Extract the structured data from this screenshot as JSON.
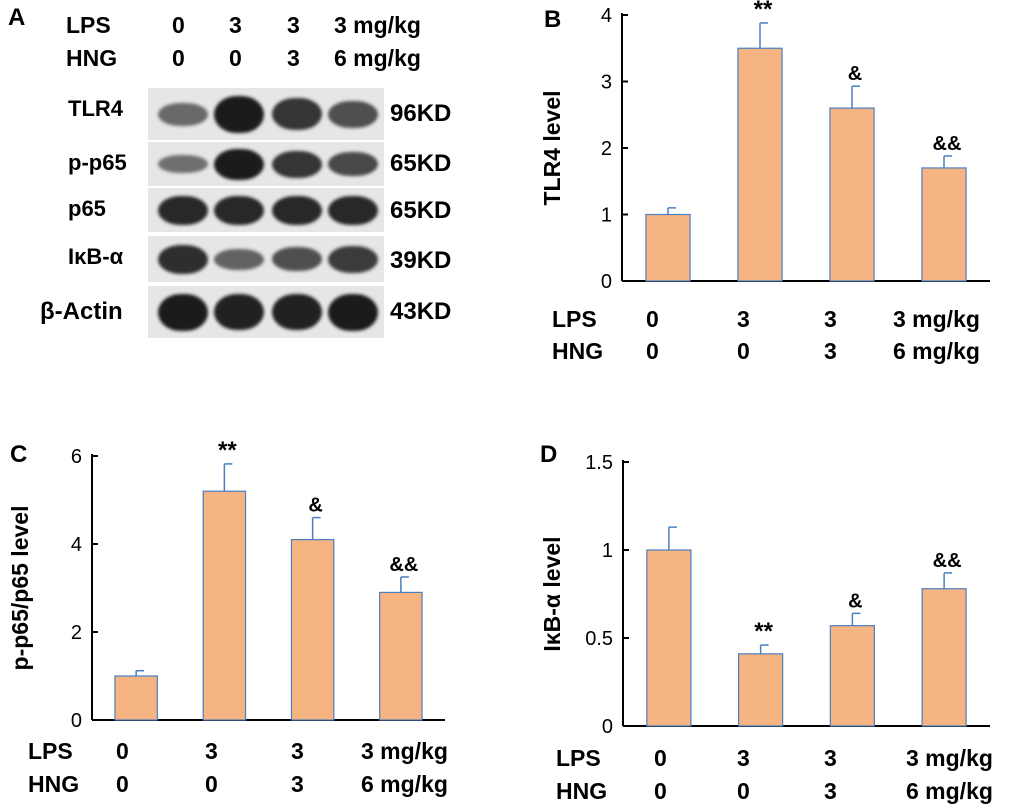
{
  "figure": {
    "conditions": {
      "row1_name": "LPS",
      "row2_name": "HNG",
      "row1_values": [
        "0",
        "3",
        "3",
        "3 mg/kg"
      ],
      "row2_values": [
        "0",
        "0",
        "3",
        "6 mg/kg"
      ]
    },
    "panelA": {
      "letter": "A",
      "rows": [
        {
          "label": "TLR4",
          "kd": "96KD",
          "intensities": [
            0.35,
            0.95,
            0.75,
            0.55
          ]
        },
        {
          "label": "p-p65",
          "kd": "65KD",
          "intensities": [
            0.3,
            0.95,
            0.75,
            0.6
          ]
        },
        {
          "label": "p65",
          "kd": "65KD",
          "intensities": [
            0.85,
            0.85,
            0.85,
            0.85
          ]
        },
        {
          "label": "IκB-α",
          "kd": "39KD",
          "intensities": [
            0.8,
            0.4,
            0.55,
            0.7
          ]
        },
        {
          "label": "β-Actin",
          "kd": "43KD",
          "intensities": [
            0.95,
            0.9,
            0.9,
            0.95
          ]
        }
      ]
    },
    "colors": {
      "bar_fill": "#f5b482",
      "bar_stroke": "#4a7fc1",
      "axis": "#000000"
    }
  },
  "chart_data": [
    {
      "panel": "B",
      "type": "bar",
      "categories": [
        "0 / 0",
        "3 / 0",
        "3 / 3",
        "3 / 6 mg/kg"
      ],
      "values": [
        1.0,
        3.5,
        2.6,
        1.7
      ],
      "errors": [
        0.1,
        0.38,
        0.33,
        0.18
      ],
      "annotations": [
        "",
        "**",
        "&",
        "&&"
      ],
      "ylabel": "TLR4 level",
      "ylim": [
        0,
        4
      ],
      "yticks": [
        "0",
        "1",
        "2",
        "3",
        "4"
      ]
    },
    {
      "panel": "C",
      "type": "bar",
      "categories": [
        "0 / 0",
        "3 / 0",
        "3 / 3",
        "3 / 6 mg/kg"
      ],
      "values": [
        1.0,
        5.2,
        4.1,
        2.9
      ],
      "errors": [
        0.12,
        0.62,
        0.5,
        0.35
      ],
      "annotations": [
        "",
        "**",
        "&",
        "&&"
      ],
      "ylabel": "p-p65/p65 level",
      "ylim": [
        0,
        6
      ],
      "yticks": [
        "0",
        "2",
        "4",
        "6"
      ]
    },
    {
      "panel": "D",
      "type": "bar",
      "categories": [
        "0 / 0",
        "3 / 0",
        "3 / 3",
        "3 / 6 mg/kg"
      ],
      "values": [
        1.0,
        0.41,
        0.57,
        0.78
      ],
      "errors": [
        0.13,
        0.05,
        0.07,
        0.09
      ],
      "annotations": [
        "",
        "**",
        "&",
        "&&"
      ],
      "ylabel": "IκB-α level",
      "ylim": [
        0,
        1.5
      ],
      "yticks": [
        "0",
        "0.5",
        "1",
        "1.5"
      ]
    }
  ]
}
